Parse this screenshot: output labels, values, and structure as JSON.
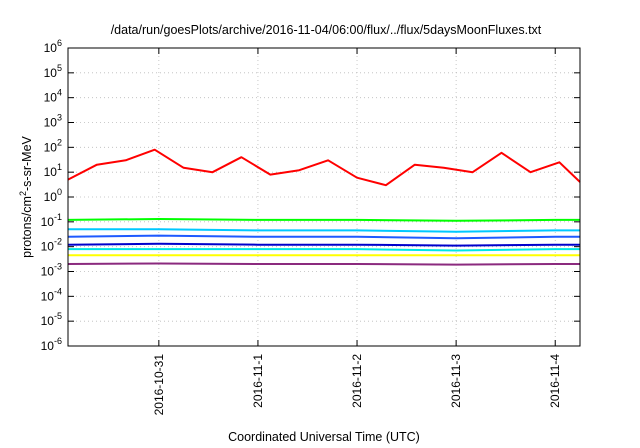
{
  "chart_data": {
    "type": "line",
    "title": "/data/run/goesPlots/archive/2016-11-04/06:00/flux/../flux/5daysMoonFluxes.txt",
    "xlabel": "Coordinated Universal Time (UTC)",
    "ylabel_parts": [
      "protons/cm",
      "2",
      "-s-sr-MeV"
    ],
    "y_scale": "log",
    "ylim": [
      1e-06,
      1000000.0
    ],
    "y_ticks": [
      {
        "base": "10",
        "exp": "-6"
      },
      {
        "base": "10",
        "exp": "-5"
      },
      {
        "base": "10",
        "exp": "-4"
      },
      {
        "base": "10",
        "exp": "-3"
      },
      {
        "base": "10",
        "exp": "-2"
      },
      {
        "base": "10",
        "exp": "-1"
      },
      {
        "base": "10",
        "exp": "0"
      },
      {
        "base": "10",
        "exp": "1"
      },
      {
        "base": "10",
        "exp": "2"
      },
      {
        "base": "10",
        "exp": "3"
      },
      {
        "base": "10",
        "exp": "4"
      },
      {
        "base": "10",
        "exp": "5"
      },
      {
        "base": "10",
        "exp": "6"
      }
    ],
    "x_range": [
      "2016-10-30T02:00",
      "2016-11-04T06:00"
    ],
    "x_ticks": [
      "2016-10-31",
      "2016-11-1",
      "2016-11-2",
      "2016-11-3",
      "2016-11-4"
    ],
    "grid": true,
    "series": [
      {
        "color": "#ff0000",
        "x": [
          "2016-10-30T02:00",
          "2016-10-30T09:00",
          "2016-10-30T16:00",
          "2016-10-30T23:00",
          "2016-10-31T06:00",
          "2016-10-31T13:00",
          "2016-10-31T20:00",
          "2016-11-01T03:00",
          "2016-11-01T10:00",
          "2016-11-01T17:00",
          "2016-11-02T00:00",
          "2016-11-02T07:00",
          "2016-11-02T14:00",
          "2016-11-02T21:00",
          "2016-11-03T04:00",
          "2016-11-03T11:00",
          "2016-11-03T18:00",
          "2016-11-04T01:00",
          "2016-11-04T06:00"
        ],
        "values": [
          5,
          20,
          30,
          80,
          15,
          10,
          40,
          8,
          12,
          30,
          6,
          3,
          20,
          15,
          10,
          60,
          10,
          25,
          4
        ]
      },
      {
        "color": "#00ff00",
        "x": [
          "2016-10-30T02:00",
          "2016-10-31T00:00",
          "2016-11-01T00:00",
          "2016-11-02T00:00",
          "2016-11-03T00:00",
          "2016-11-04T00:00",
          "2016-11-04T06:00"
        ],
        "values": [
          0.12,
          0.13,
          0.12,
          0.12,
          0.11,
          0.12,
          0.12
        ]
      },
      {
        "color": "#00c8ff",
        "x": [
          "2016-10-30T02:00",
          "2016-10-31T00:00",
          "2016-11-01T00:00",
          "2016-11-02T00:00",
          "2016-11-03T00:00",
          "2016-11-04T00:00",
          "2016-11-04T06:00"
        ],
        "values": [
          0.05,
          0.05,
          0.045,
          0.045,
          0.04,
          0.045,
          0.045
        ]
      },
      {
        "color": "#1e5aff",
        "x": [
          "2016-10-30T02:00",
          "2016-10-31T00:00",
          "2016-11-01T00:00",
          "2016-11-02T00:00",
          "2016-11-03T00:00",
          "2016-11-04T00:00",
          "2016-11-04T06:00"
        ],
        "values": [
          0.025,
          0.028,
          0.025,
          0.025,
          0.022,
          0.025,
          0.025
        ]
      },
      {
        "color": "#0000cc",
        "x": [
          "2016-10-30T02:00",
          "2016-10-31T00:00",
          "2016-11-01T00:00",
          "2016-11-02T00:00",
          "2016-11-03T00:00",
          "2016-11-04T00:00",
          "2016-11-04T06:00"
        ],
        "values": [
          0.012,
          0.013,
          0.012,
          0.012,
          0.011,
          0.012,
          0.012
        ]
      },
      {
        "color": "#00e6e6",
        "x": [
          "2016-10-30T02:00",
          "2016-10-31T00:00",
          "2016-11-01T00:00",
          "2016-11-02T00:00",
          "2016-11-03T00:00",
          "2016-11-04T00:00",
          "2016-11-04T06:00"
        ],
        "values": [
          0.008,
          0.008,
          0.008,
          0.008,
          0.007,
          0.008,
          0.008
        ]
      },
      {
        "color": "#ffff00",
        "x": [
          "2016-10-30T02:00",
          "2016-10-31T00:00",
          "2016-11-01T00:00",
          "2016-11-02T00:00",
          "2016-11-03T00:00",
          "2016-11-04T00:00",
          "2016-11-04T06:00"
        ],
        "values": [
          0.0045,
          0.0045,
          0.0045,
          0.0045,
          0.0045,
          0.0045,
          0.0045
        ]
      },
      {
        "color": "#8b2a7e",
        "x": [
          "2016-10-30T02:00",
          "2016-10-31T00:00",
          "2016-11-01T00:00",
          "2016-11-02T00:00",
          "2016-11-03T00:00",
          "2016-11-04T00:00",
          "2016-11-04T06:00"
        ],
        "values": [
          0.002,
          0.0021,
          0.002,
          0.002,
          0.0019,
          0.002,
          0.002
        ]
      }
    ]
  }
}
